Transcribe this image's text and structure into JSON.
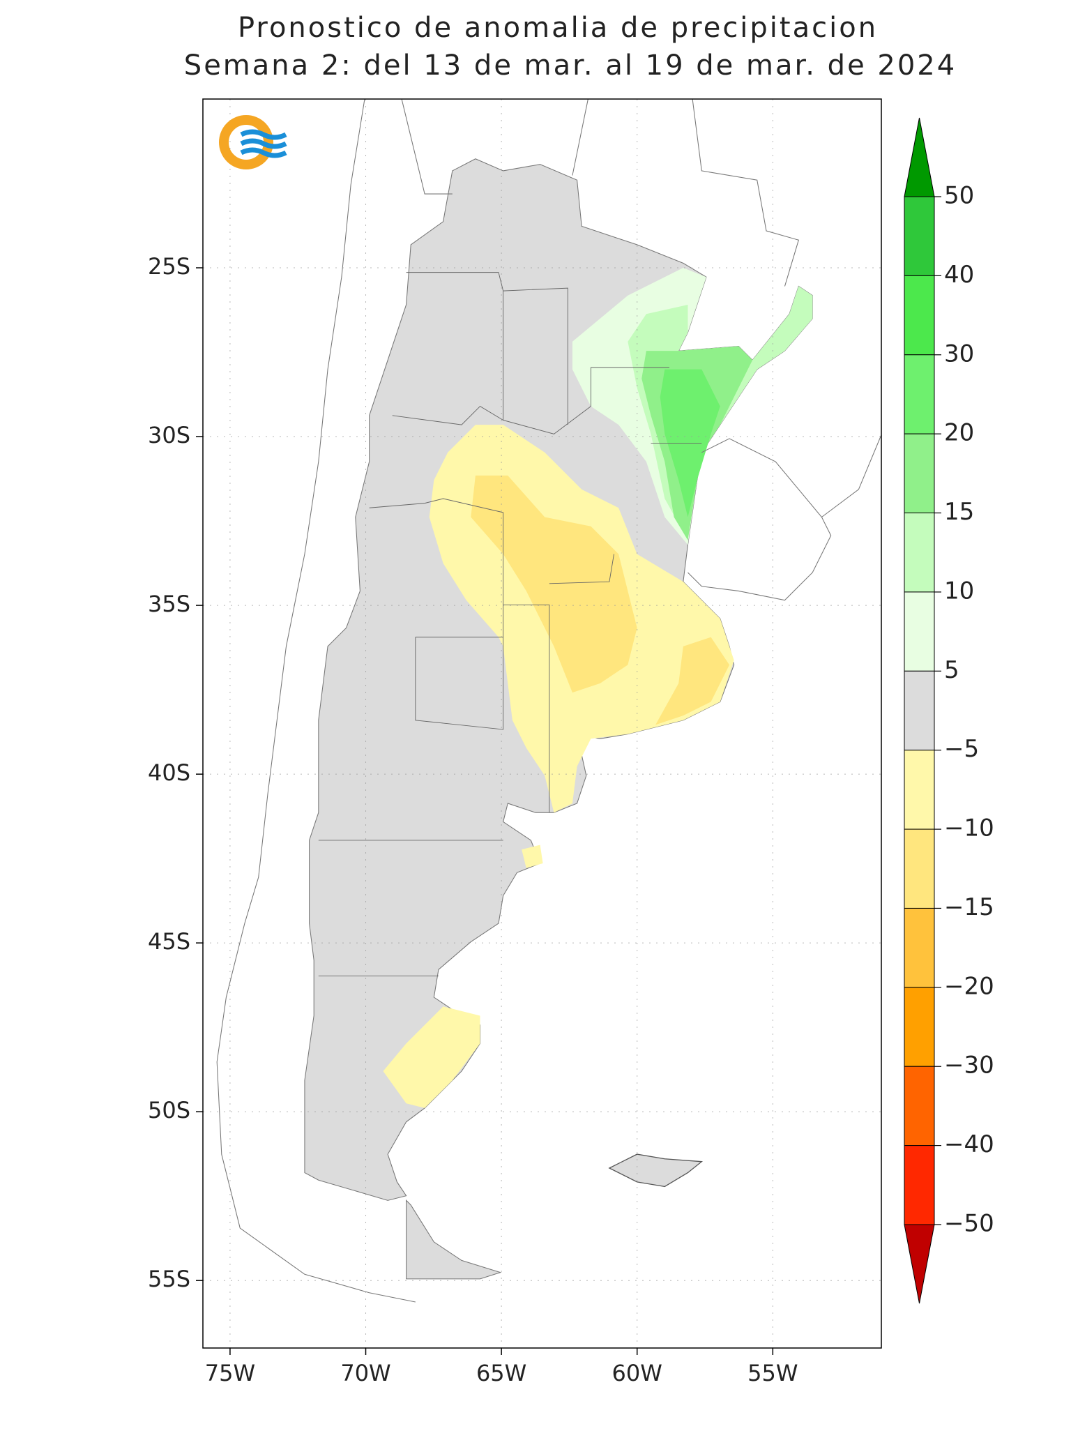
{
  "title": [
    "Pronostico de anomalia de precipitacion",
    "Semana 2: del 13 de mar. al 19 de mar. de 2024"
  ],
  "map": {
    "lonlim": [
      -76,
      -51
    ],
    "latlim": [
      -57,
      -20
    ],
    "grid": true,
    "lat_ticks": [
      {
        "value": -25,
        "label": "25S"
      },
      {
        "value": -30,
        "label": "30S"
      },
      {
        "value": -35,
        "label": "35S"
      },
      {
        "value": -40,
        "label": "40S"
      },
      {
        "value": -45,
        "label": "45S"
      },
      {
        "value": -50,
        "label": "50S"
      },
      {
        "value": -55,
        "label": "55S"
      }
    ],
    "lon_ticks": [
      {
        "value": -75,
        "label": "75W"
      },
      {
        "value": -70,
        "label": "70W"
      },
      {
        "value": -65,
        "label": "65W"
      },
      {
        "value": -60,
        "label": "60W"
      },
      {
        "value": -55,
        "label": "55W"
      }
    ]
  },
  "colorbar": {
    "levels": [
      50,
      40,
      30,
      20,
      15,
      10,
      5,
      {
        "value": -5,
        "label": "−5"
      },
      {
        "value": -10,
        "label": "−10"
      },
      {
        "value": -15,
        "label": "−15"
      },
      {
        "value": -20,
        "label": "−20"
      },
      {
        "value": -30,
        "label": "−30"
      },
      {
        "value": -40,
        "label": "−40"
      },
      {
        "value": -50,
        "label": "−50"
      }
    ],
    "colors": [
      "#009900",
      "#2fc83a",
      "#4ce84c",
      "#6ef06e",
      "#90f08a",
      "#c4fcbc",
      "#e8fee2",
      "#dcdcdc",
      "#fff8aa",
      "#ffe67e",
      "#ffc23c",
      "#ffa000",
      "#ff6400",
      "#ff2800",
      "#c00000"
    ]
  }
}
